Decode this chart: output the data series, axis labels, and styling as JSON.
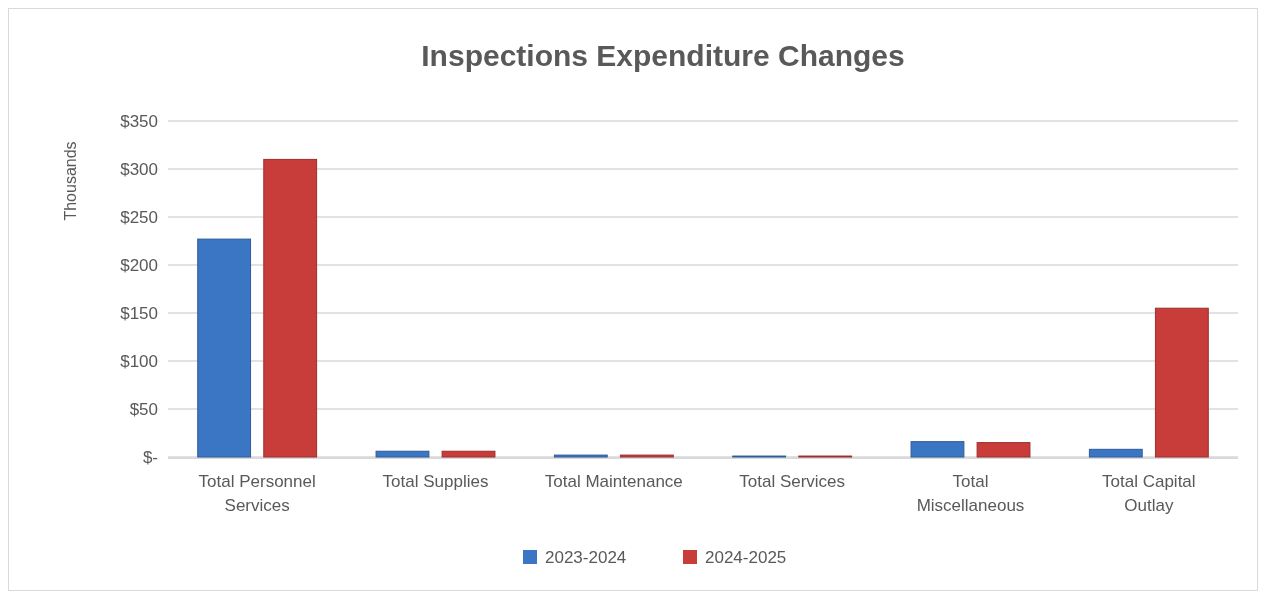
{
  "chart_data": {
    "type": "bar",
    "title": "Inspections Expenditure Changes",
    "ylabel": "Thousands",
    "categories": [
      "Total Personnel Services",
      "Total Supplies",
      "Total Maintenance",
      "Total Services",
      "Total Miscellaneous",
      "Total Capital Outlay"
    ],
    "series": [
      {
        "name": "2023-2024",
        "color": "#3b76c4",
        "values": [
          227,
          6,
          2,
          1,
          16,
          8
        ]
      },
      {
        "name": "2024-2025",
        "color": "#c83c3a",
        "values": [
          310,
          6,
          2,
          1,
          15,
          155
        ]
      }
    ],
    "ylim": [
      0,
      350
    ],
    "yticks": [
      {
        "value": 0,
        "label": "$-"
      },
      {
        "value": 50,
        "label": "$50"
      },
      {
        "value": 100,
        "label": "$100"
      },
      {
        "value": 150,
        "label": "$150"
      },
      {
        "value": 200,
        "label": "$200"
      },
      {
        "value": 250,
        "label": "$250"
      },
      {
        "value": 300,
        "label": "$300"
      },
      {
        "value": 350,
        "label": "$350"
      }
    ],
    "grid": "y",
    "legend": "bottom"
  }
}
